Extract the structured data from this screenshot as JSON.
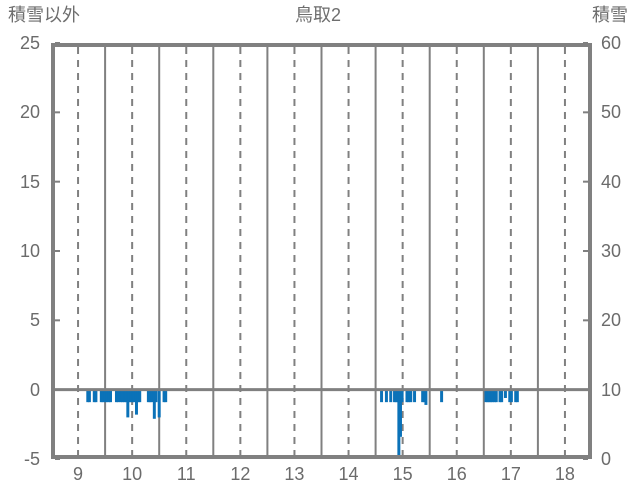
{
  "header": {
    "left_axis_title": "積雪以外",
    "title": "鳥取2",
    "right_axis_title": "積雪"
  },
  "chart_data": {
    "type": "bar",
    "title": "鳥取2",
    "x_axis": {
      "min": 8.5,
      "max": 18.5,
      "tick_labels": [
        9,
        10,
        11,
        12,
        13,
        14,
        15,
        16,
        17,
        18
      ],
      "major_gridlines_dashed": [
        9,
        10,
        11,
        12,
        13,
        14,
        15,
        16,
        17,
        18
      ],
      "minor_gridlines_solid": [
        9.5,
        10.5,
        11.5,
        12.5,
        13.5,
        14.5,
        15.5,
        16.5,
        17.5
      ]
    },
    "y_axis_left": {
      "label": "積雪以外",
      "min": -5,
      "max": 25,
      "ticks": [
        25,
        20,
        15,
        10,
        5,
        0,
        -5
      ]
    },
    "y_axis_right": {
      "label": "積雪",
      "min": 0,
      "max": 60,
      "ticks": [
        60,
        50,
        40,
        30,
        20,
        10,
        0
      ]
    },
    "zero_line": true,
    "grid_on": true,
    "legend": "none",
    "colors": {
      "bar": "#0b72b8",
      "grid": "#808080",
      "border": "#808080",
      "text": "#6b6b6b"
    },
    "bar_width_hours": 0.055,
    "series": [
      {
        "name": "積雪以外",
        "type": "bar",
        "color": "#0b72b8",
        "points": [
          [
            9.18,
            -0.9
          ],
          [
            9.21,
            -0.9
          ],
          [
            9.3,
            -0.9
          ],
          [
            9.33,
            -0.9
          ],
          [
            9.43,
            -0.9
          ],
          [
            9.46,
            -0.9
          ],
          [
            9.5,
            -0.9
          ],
          [
            9.53,
            -0.9
          ],
          [
            9.57,
            -0.9
          ],
          [
            9.6,
            -0.9
          ],
          [
            9.71,
            -0.9
          ],
          [
            9.74,
            -0.9
          ],
          [
            9.79,
            -0.9
          ],
          [
            9.82,
            -0.9
          ],
          [
            9.86,
            -0.9
          ],
          [
            9.89,
            -0.9
          ],
          [
            9.92,
            -2.0
          ],
          [
            9.95,
            -0.9
          ],
          [
            9.98,
            -0.9
          ],
          [
            10.01,
            -0.9
          ],
          [
            10.04,
            -0.9
          ],
          [
            10.08,
            -1.8
          ],
          [
            10.11,
            -0.9
          ],
          [
            10.14,
            -0.9
          ],
          [
            10.3,
            -0.9
          ],
          [
            10.33,
            -0.9
          ],
          [
            10.36,
            -0.9
          ],
          [
            10.41,
            -2.1
          ],
          [
            10.44,
            -0.9
          ],
          [
            10.5,
            -2.0
          ],
          [
            10.59,
            -0.9
          ],
          [
            10.62,
            -0.9
          ],
          [
            14.61,
            -0.9
          ],
          [
            14.7,
            -0.9
          ],
          [
            14.78,
            -0.9
          ],
          [
            14.85,
            -0.9
          ],
          [
            14.88,
            -0.9
          ],
          [
            14.91,
            -0.9
          ],
          [
            14.93,
            -5.0
          ],
          [
            14.96,
            -3.4
          ],
          [
            14.99,
            -0.9
          ],
          [
            15.08,
            -0.9
          ],
          [
            15.11,
            -0.9
          ],
          [
            15.15,
            -0.9
          ],
          [
            15.22,
            -0.9
          ],
          [
            15.37,
            -0.9
          ],
          [
            15.4,
            -0.9
          ],
          [
            15.43,
            -1.1
          ],
          [
            15.72,
            -0.9
          ],
          [
            16.54,
            -0.9
          ],
          [
            16.57,
            -0.9
          ],
          [
            16.6,
            -0.9
          ],
          [
            16.63,
            -0.9
          ],
          [
            16.66,
            -0.9
          ],
          [
            16.7,
            -0.9
          ],
          [
            16.73,
            -0.9
          ],
          [
            16.8,
            -0.9
          ],
          [
            16.83,
            -0.9
          ],
          [
            16.9,
            -0.6
          ],
          [
            16.98,
            -0.9
          ],
          [
            17.01,
            -0.9
          ],
          [
            17.09,
            -0.9
          ],
          [
            17.12,
            -0.9
          ]
        ]
      }
    ]
  }
}
